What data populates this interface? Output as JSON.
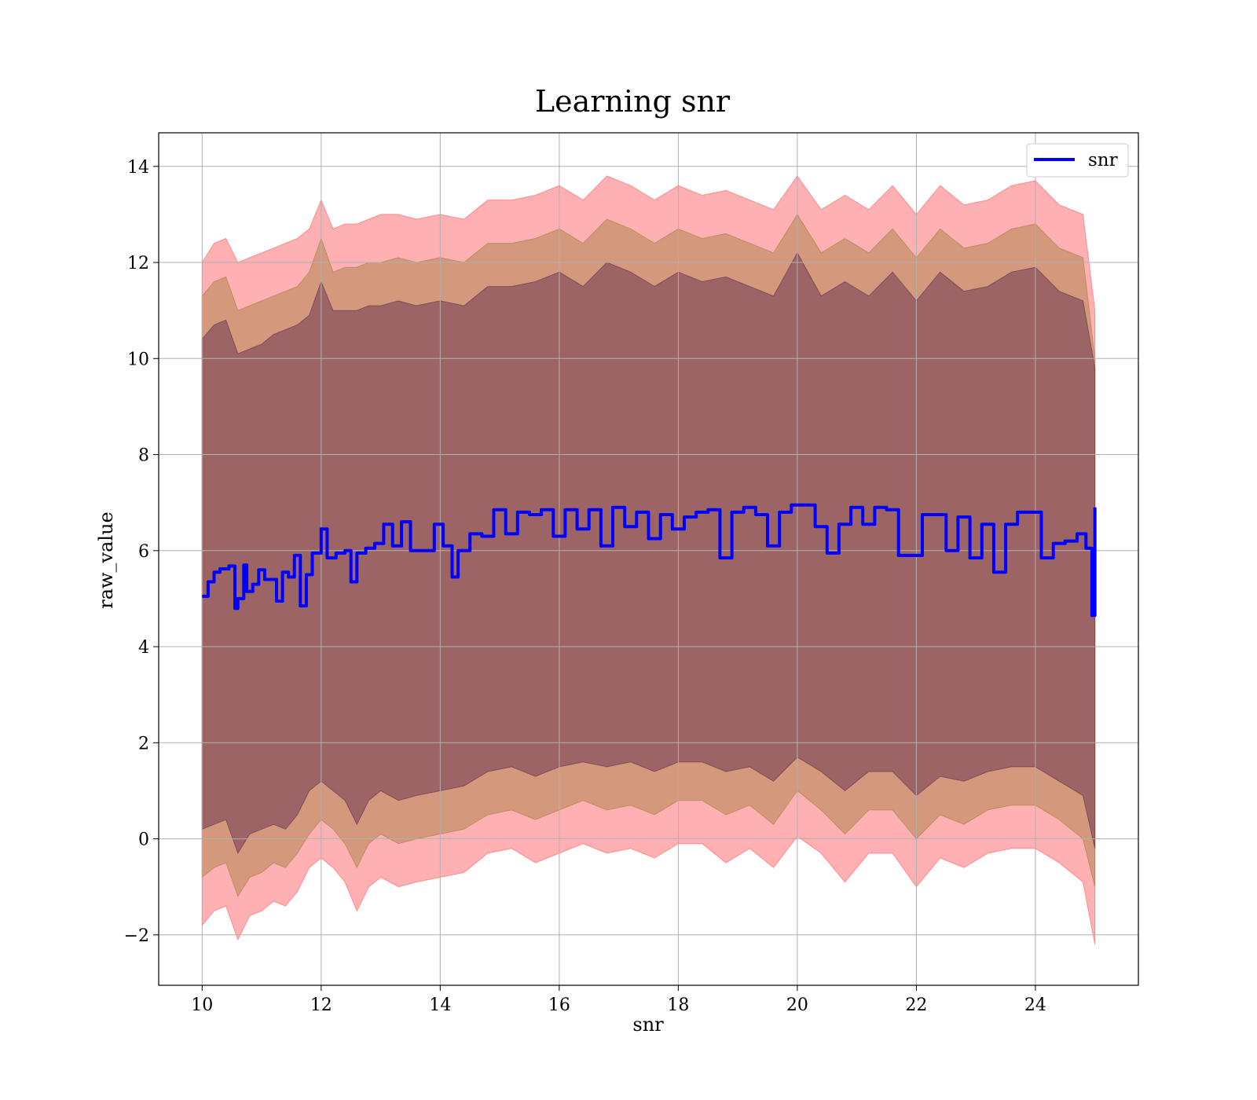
{
  "chart_data": {
    "type": "line",
    "title": "Learning snr",
    "xlabel": "snr",
    "ylabel": "raw_value",
    "xlim": [
      9.27,
      25.73
    ],
    "ylim": [
      -3.05,
      14.7
    ],
    "xticks": [
      10,
      12,
      14,
      16,
      18,
      20,
      22,
      24
    ],
    "xtick_labels": [
      "10",
      "12",
      "14",
      "16",
      "18",
      "20",
      "22",
      "24"
    ],
    "yticks": [
      -2,
      0,
      2,
      4,
      6,
      8,
      10,
      12,
      14
    ],
    "ytick_labels": [
      "−2",
      "0",
      "2",
      "4",
      "6",
      "8",
      "10",
      "12",
      "14"
    ],
    "grid": true,
    "legend": {
      "position": "top-right",
      "entries": [
        "snr"
      ]
    },
    "series": [
      {
        "name": "snr",
        "color": "#0000ff",
        "x": [
          10.0,
          10.1,
          10.2,
          10.3,
          10.45,
          10.55,
          10.6,
          10.7,
          10.75,
          10.85,
          10.95,
          11.05,
          11.15,
          11.25,
          11.35,
          11.45,
          11.55,
          11.65,
          11.75,
          11.85,
          12.0,
          12.1,
          12.25,
          12.4,
          12.5,
          12.6,
          12.75,
          12.9,
          13.05,
          13.2,
          13.35,
          13.5,
          13.7,
          13.9,
          14.05,
          14.2,
          14.3,
          14.5,
          14.7,
          14.9,
          15.1,
          15.3,
          15.5,
          15.7,
          15.9,
          16.1,
          16.3,
          16.5,
          16.7,
          16.9,
          17.1,
          17.3,
          17.5,
          17.7,
          17.9,
          18.1,
          18.3,
          18.5,
          18.7,
          18.9,
          19.1,
          19.3,
          19.5,
          19.7,
          19.9,
          20.1,
          20.3,
          20.5,
          20.7,
          20.9,
          21.1,
          21.3,
          21.5,
          21.7,
          21.9,
          22.1,
          22.3,
          22.5,
          22.7,
          22.9,
          23.1,
          23.3,
          23.5,
          23.7,
          23.9,
          24.1,
          24.3,
          24.5,
          24.7,
          24.85,
          24.95,
          25.0
        ],
        "y": [
          5.05,
          5.35,
          5.55,
          5.62,
          5.68,
          4.8,
          5.0,
          5.7,
          5.15,
          5.3,
          5.6,
          5.4,
          5.4,
          4.95,
          5.55,
          5.45,
          5.9,
          4.85,
          5.5,
          5.95,
          6.45,
          5.85,
          5.95,
          6.0,
          5.35,
          5.95,
          6.05,
          6.15,
          6.55,
          6.1,
          6.6,
          6.0,
          6.0,
          6.55,
          6.1,
          5.45,
          6.0,
          6.35,
          6.3,
          6.85,
          6.35,
          6.8,
          6.75,
          6.85,
          6.3,
          6.85,
          6.45,
          6.85,
          6.1,
          6.9,
          6.5,
          6.8,
          6.25,
          6.75,
          6.45,
          6.7,
          6.8,
          6.85,
          5.85,
          6.8,
          6.9,
          6.75,
          6.1,
          6.8,
          6.95,
          6.95,
          6.5,
          5.95,
          6.55,
          6.9,
          6.55,
          6.9,
          6.85,
          5.9,
          5.9,
          6.75,
          6.75,
          6.0,
          6.7,
          5.85,
          6.55,
          5.55,
          6.55,
          6.8,
          6.8,
          5.85,
          6.15,
          6.2,
          6.35,
          6.05,
          4.65,
          6.9
        ]
      }
    ],
    "bands": [
      {
        "color": "#ff6f74",
        "x": [
          10.0,
          10.2,
          10.4,
          10.6,
          10.8,
          11.0,
          11.2,
          11.4,
          11.6,
          11.8,
          12.0,
          12.2,
          12.4,
          12.6,
          12.8,
          13.0,
          13.3,
          13.6,
          14.0,
          14.4,
          14.8,
          15.2,
          15.6,
          16.0,
          16.4,
          16.8,
          17.2,
          17.6,
          18.0,
          18.4,
          18.8,
          19.2,
          19.6,
          20.0,
          20.4,
          20.8,
          21.2,
          21.6,
          22.0,
          22.4,
          22.8,
          23.2,
          23.6,
          24.0,
          24.4,
          24.8,
          25.0
        ],
        "lower": [
          -1.8,
          -1.5,
          -1.4,
          -2.1,
          -1.6,
          -1.5,
          -1.3,
          -1.4,
          -1.1,
          -0.6,
          -0.4,
          -0.6,
          -0.9,
          -1.5,
          -1.0,
          -0.8,
          -1.0,
          -0.9,
          -0.8,
          -0.7,
          -0.3,
          -0.2,
          -0.5,
          -0.3,
          -0.1,
          -0.3,
          -0.2,
          -0.4,
          -0.1,
          -0.1,
          -0.5,
          -0.2,
          -0.6,
          0.05,
          -0.3,
          -0.9,
          -0.3,
          -0.3,
          -1.0,
          -0.4,
          -0.6,
          -0.3,
          -0.2,
          -0.2,
          -0.5,
          -0.9,
          -2.2
        ],
        "upper": [
          12.0,
          12.4,
          12.5,
          12.0,
          12.1,
          12.2,
          12.3,
          12.4,
          12.5,
          12.7,
          13.3,
          12.7,
          12.8,
          12.8,
          12.9,
          13.0,
          13.0,
          12.9,
          13.0,
          12.9,
          13.3,
          13.3,
          13.4,
          13.6,
          13.3,
          13.8,
          13.6,
          13.3,
          13.6,
          13.4,
          13.5,
          13.3,
          13.1,
          13.8,
          13.1,
          13.4,
          13.1,
          13.6,
          13.0,
          13.6,
          13.2,
          13.3,
          13.6,
          13.7,
          13.2,
          13.0,
          11.0
        ]
      },
      {
        "color": "#b0854f",
        "x": [
          10.0,
          10.2,
          10.4,
          10.6,
          10.8,
          11.0,
          11.2,
          11.4,
          11.6,
          11.8,
          12.0,
          12.2,
          12.4,
          12.6,
          12.8,
          13.0,
          13.3,
          13.6,
          14.0,
          14.4,
          14.8,
          15.2,
          15.6,
          16.0,
          16.4,
          16.8,
          17.2,
          17.6,
          18.0,
          18.4,
          18.8,
          19.2,
          19.6,
          20.0,
          20.4,
          20.8,
          21.2,
          21.6,
          22.0,
          22.4,
          22.8,
          23.2,
          23.6,
          24.0,
          24.4,
          24.8,
          25.0
        ],
        "lower": [
          -0.8,
          -0.6,
          -0.5,
          -1.2,
          -0.8,
          -0.7,
          -0.5,
          -0.6,
          -0.3,
          0.1,
          0.4,
          0.2,
          -0.1,
          -0.6,
          -0.1,
          0.1,
          -0.1,
          0.0,
          0.1,
          0.2,
          0.5,
          0.6,
          0.4,
          0.6,
          0.8,
          0.6,
          0.7,
          0.5,
          0.8,
          0.8,
          0.5,
          0.7,
          0.3,
          1.0,
          0.6,
          0.1,
          0.6,
          0.6,
          0.0,
          0.5,
          0.3,
          0.6,
          0.7,
          0.7,
          0.4,
          0.0,
          -1.0
        ],
        "upper": [
          11.3,
          11.6,
          11.7,
          11.0,
          11.1,
          11.2,
          11.3,
          11.4,
          11.5,
          11.8,
          12.5,
          11.8,
          11.9,
          11.9,
          12.0,
          12.0,
          12.1,
          12.0,
          12.1,
          12.0,
          12.4,
          12.4,
          12.5,
          12.7,
          12.4,
          12.9,
          12.7,
          12.4,
          12.7,
          12.5,
          12.6,
          12.4,
          12.2,
          13.0,
          12.2,
          12.5,
          12.2,
          12.7,
          12.1,
          12.7,
          12.3,
          12.4,
          12.7,
          12.8,
          12.3,
          12.1,
          10.0
        ]
      },
      {
        "color": "#6f3a52",
        "x": [
          10.0,
          10.2,
          10.4,
          10.6,
          10.8,
          11.0,
          11.2,
          11.4,
          11.6,
          11.8,
          12.0,
          12.2,
          12.4,
          12.6,
          12.8,
          13.0,
          13.3,
          13.6,
          14.0,
          14.4,
          14.8,
          15.2,
          15.6,
          16.0,
          16.4,
          16.8,
          17.2,
          17.6,
          18.0,
          18.4,
          18.8,
          19.2,
          19.6,
          20.0,
          20.4,
          20.8,
          21.2,
          21.6,
          22.0,
          22.4,
          22.8,
          23.2,
          23.6,
          24.0,
          24.4,
          24.8,
          25.0
        ],
        "lower": [
          0.2,
          0.3,
          0.4,
          -0.3,
          0.1,
          0.2,
          0.3,
          0.2,
          0.5,
          1.0,
          1.2,
          1.0,
          0.8,
          0.3,
          0.8,
          1.0,
          0.8,
          0.9,
          1.0,
          1.1,
          1.4,
          1.5,
          1.3,
          1.5,
          1.6,
          1.5,
          1.6,
          1.4,
          1.6,
          1.6,
          1.4,
          1.5,
          1.2,
          1.7,
          1.4,
          1.0,
          1.4,
          1.4,
          0.9,
          1.3,
          1.2,
          1.4,
          1.5,
          1.5,
          1.2,
          0.9,
          -0.2
        ],
        "upper": [
          10.4,
          10.7,
          10.8,
          10.1,
          10.2,
          10.3,
          10.5,
          10.6,
          10.7,
          10.9,
          11.6,
          11.0,
          11.0,
          11.0,
          11.1,
          11.1,
          11.2,
          11.1,
          11.2,
          11.1,
          11.5,
          11.5,
          11.6,
          11.8,
          11.5,
          12.0,
          11.8,
          11.5,
          11.8,
          11.6,
          11.7,
          11.5,
          11.3,
          12.2,
          11.3,
          11.6,
          11.3,
          11.8,
          11.2,
          11.8,
          11.4,
          11.5,
          11.8,
          11.9,
          11.4,
          11.2,
          9.8
        ]
      }
    ]
  }
}
